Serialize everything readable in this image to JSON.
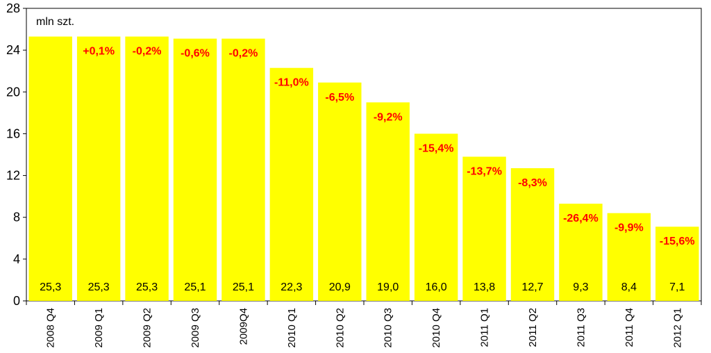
{
  "chart_data": {
    "type": "bar",
    "unit_label": "mln szt.",
    "categories": [
      "2008 Q4",
      "2009 Q1",
      "2009 Q2",
      "2009 Q3",
      "2009Q4",
      "2010 Q1",
      "2010 Q2",
      "2010 Q3",
      "2010 Q4",
      "2011 Q1",
      "2011 Q2",
      "2011 Q3",
      "2011 Q4",
      "2012 Q1"
    ],
    "values": [
      25.3,
      25.3,
      25.3,
      25.1,
      25.1,
      22.3,
      20.9,
      19.0,
      16.0,
      13.8,
      12.7,
      9.3,
      8.4,
      7.1
    ],
    "value_labels": [
      "25,3",
      "25,3",
      "25,3",
      "25,1",
      "25,1",
      "22,3",
      "20,9",
      "19,0",
      "16,0",
      "13,8",
      "12,7",
      "9,3",
      "8,4",
      "7,1"
    ],
    "change_labels": [
      "",
      "+0,1%",
      "-0,2%",
      "-0,6%",
      "-0,2%",
      "-11,0%",
      "-6,5%",
      "-9,2%",
      "-15,4%",
      "-13,7%",
      "-8,3%",
      "-26,4%",
      "-9,9%",
      "-15,6%"
    ],
    "ylim": [
      0,
      28
    ],
    "yticks": [
      "0",
      "4",
      "8",
      "12",
      "16",
      "20",
      "24",
      "28"
    ],
    "bar_color": "#ffff00",
    "change_color": "#ff0000",
    "grid": false,
    "legend": "none"
  }
}
